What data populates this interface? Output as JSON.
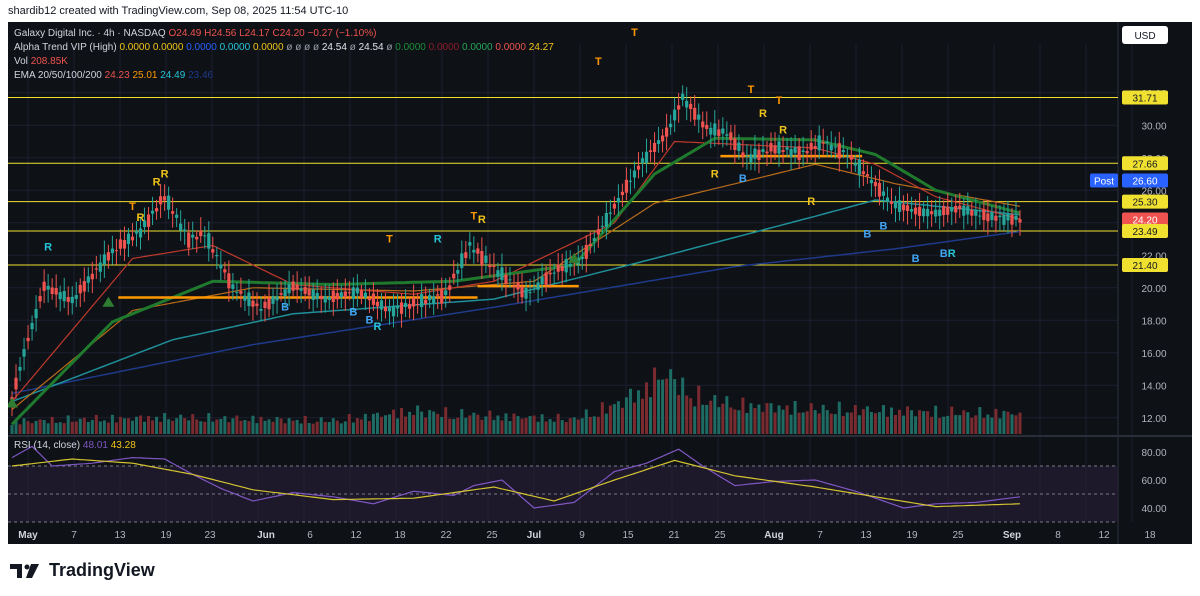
{
  "header": {
    "text": "shardib12 created with TradingView.com, Sep 08, 2025 11:54 UTC-10"
  },
  "brand": {
    "name": "TradingView"
  },
  "currency_button": "USD",
  "legend": {
    "symbol": "Galaxy Digital Inc. · 4h · NASDAQ",
    "ohlc": [
      {
        "k": "O",
        "v": "24.49"
      },
      {
        "k": "H",
        "v": "24.56"
      },
      {
        "k": "L",
        "v": "24.17"
      },
      {
        "k": "C",
        "v": "24.20"
      }
    ],
    "change": "−0.27 (−1.10%)",
    "alpha_label": "Alpha Trend VIP (High)",
    "alpha_values": [
      {
        "v": "0.0000",
        "color": "#f0c419"
      },
      {
        "v": "0.0000",
        "color": "#f0c419"
      },
      {
        "v": "0.0000",
        "color": "#2962ff"
      },
      {
        "v": "0.0000",
        "color": "#26c6da"
      },
      {
        "v": "0.0000",
        "color": "#f0c419"
      },
      {
        "v": "ø",
        "color": "#9aa0aa"
      },
      {
        "v": "ø",
        "color": "#9aa0aa"
      },
      {
        "v": "ø",
        "color": "#9aa0aa"
      },
      {
        "v": "ø",
        "color": "#9aa0aa"
      },
      {
        "v": "24.54",
        "color": "#e0e3eb"
      },
      {
        "v": "ø",
        "color": "#9aa0aa"
      },
      {
        "v": "24.54",
        "color": "#e0e3eb"
      },
      {
        "v": "ø",
        "color": "#9aa0aa"
      },
      {
        "v": "0.0000",
        "color": "#1b8f3a"
      },
      {
        "v": "0.0000",
        "color": "#8b1d2c"
      },
      {
        "v": "0.0000",
        "color": "#26a65b"
      },
      {
        "v": "0.0000",
        "color": "#ef5350"
      },
      {
        "v": "24.27",
        "color": "#f0c419"
      }
    ],
    "vol_label": "Vol",
    "vol_value": "208.85K",
    "ema_label": "EMA 20/50/100/200",
    "ema_values": [
      {
        "v": "24.23",
        "color": "#ef5350"
      },
      {
        "v": "25.01",
        "color": "#ff9800"
      },
      {
        "v": "24.49",
        "color": "#26c6da"
      },
      {
        "v": "23.46",
        "color": "#1e3a8a"
      }
    ],
    "rsi_label": "RSI (14, close)",
    "rsi_values": [
      {
        "v": "48.01",
        "color": "#7e57c2"
      },
      {
        "v": "43.28",
        "color": "#f0c419"
      }
    ]
  },
  "colors": {
    "bg": "#0e1116",
    "grid": "#1c2030",
    "up": "#26a69a",
    "down": "#ef5350",
    "text": "#b2b5be",
    "hline": "#f0e130",
    "support": "#ff9800"
  },
  "chart_data": [
    {
      "type": "candlestick",
      "title": "Galaxy Digital Inc. · 4h · NASDAQ",
      "y_ticks": [
        12,
        14,
        16,
        18,
        20,
        22,
        24,
        26,
        28,
        30,
        32
      ],
      "ylim": [
        11,
        35
      ],
      "x_tick_labels": [
        "May",
        "7",
        "13",
        "19",
        "23",
        "Jun",
        "6",
        "12",
        "18",
        "22",
        "25",
        "Jul",
        "9",
        "15",
        "21",
        "25",
        "Aug",
        "7",
        "13",
        "19",
        "25",
        "Sep",
        "8",
        "12",
        "18"
      ],
      "price_lines": [
        31.71,
        27.66,
        25.3,
        23.49,
        21.4
      ],
      "price_labels": [
        {
          "text": "31.71",
          "value": 31.71,
          "style": "line"
        },
        {
          "text": "27.66",
          "value": 27.66,
          "style": "line"
        },
        {
          "text": "Post",
          "value": 26.6,
          "style": "blue-tag"
        },
        {
          "text": "26.60",
          "value": 26.6,
          "style": "blue"
        },
        {
          "text": "25.30",
          "value": 25.3,
          "style": "line"
        },
        {
          "text": "24.20",
          "value": 24.2,
          "style": "red"
        },
        {
          "text": "23.49",
          "value": 23.49,
          "style": "line"
        },
        {
          "text": "21.40",
          "value": 21.4,
          "style": "line"
        }
      ],
      "support_levels": [
        {
          "from": 0.105,
          "to": 0.23,
          "value": 19.4
        },
        {
          "from": 0.23,
          "to": 0.46,
          "value": 19.4
        },
        {
          "from": 0.46,
          "to": 0.56,
          "value": 20.1
        },
        {
          "from": 0.7,
          "to": 0.84,
          "value": 28.1
        }
      ],
      "key_points": [
        [
          0,
          13.1
        ],
        [
          3,
          16.0
        ],
        [
          8,
          20.1
        ],
        [
          15,
          19.2
        ],
        [
          24,
          22.0
        ],
        [
          32,
          23.5
        ],
        [
          38,
          25.6
        ],
        [
          44,
          23.0
        ],
        [
          48,
          23.3
        ],
        [
          55,
          20.0
        ],
        [
          62,
          18.7
        ],
        [
          70,
          20.1
        ],
        [
          78,
          19.3
        ],
        [
          86,
          19.8
        ],
        [
          94,
          18.6
        ],
        [
          100,
          19.0
        ],
        [
          108,
          19.6
        ],
        [
          114,
          22.6
        ],
        [
          120,
          21.2
        ],
        [
          128,
          19.6
        ],
        [
          135,
          21.0
        ],
        [
          142,
          21.8
        ],
        [
          150,
          25.0
        ],
        [
          157,
          27.8
        ],
        [
          163,
          29.5
        ],
        [
          167,
          31.7
        ],
        [
          173,
          29.8
        ],
        [
          178,
          29.5
        ],
        [
          183,
          28.0
        ],
        [
          190,
          28.6
        ],
        [
          197,
          28.3
        ],
        [
          202,
          29.0
        ],
        [
          208,
          28.2
        ],
        [
          214,
          26.6
        ],
        [
          219,
          25.2
        ],
        [
          225,
          24.7
        ],
        [
          230,
          24.6
        ],
        [
          236,
          24.9
        ],
        [
          242,
          24.4
        ],
        [
          247,
          24.3
        ],
        [
          251,
          24.2
        ]
      ],
      "volume_profile": [
        [
          0,
          0.15
        ],
        [
          20,
          0.18
        ],
        [
          40,
          0.2
        ],
        [
          60,
          0.18
        ],
        [
          80,
          0.16
        ],
        [
          100,
          0.28
        ],
        [
          110,
          0.24
        ],
        [
          140,
          0.18
        ],
        [
          150,
          0.35
        ],
        [
          158,
          0.55
        ],
        [
          162,
          0.75
        ],
        [
          170,
          0.45
        ],
        [
          180,
          0.35
        ],
        [
          200,
          0.3
        ],
        [
          220,
          0.28
        ],
        [
          240,
          0.25
        ],
        [
          251,
          0.25
        ]
      ],
      "ema20": [
        [
          0,
          13.0
        ],
        [
          30,
          21.8
        ],
        [
          50,
          22.6
        ],
        [
          70,
          20.2
        ],
        [
          100,
          19.6
        ],
        [
          120,
          20.4
        ],
        [
          150,
          24.0
        ],
        [
          165,
          29.0
        ],
        [
          200,
          28.6
        ],
        [
          215,
          27.6
        ],
        [
          230,
          25.6
        ],
        [
          251,
          24.23
        ]
      ],
      "ema50": [
        [
          0,
          12.5
        ],
        [
          30,
          18.6
        ],
        [
          60,
          20.0
        ],
        [
          100,
          19.8
        ],
        [
          130,
          20.4
        ],
        [
          160,
          25.2
        ],
        [
          200,
          27.6
        ],
        [
          220,
          26.4
        ],
        [
          251,
          25.01
        ]
      ],
      "ema100": [
        [
          0,
          13.0
        ],
        [
          40,
          16.8
        ],
        [
          70,
          18.4
        ],
        [
          120,
          19.3
        ],
        [
          160,
          21.8
        ],
        [
          200,
          24.4
        ],
        [
          215,
          25.4
        ],
        [
          251,
          24.49
        ]
      ],
      "ema200": [
        [
          0,
          13.5
        ],
        [
          60,
          16.5
        ],
        [
          120,
          18.8
        ],
        [
          180,
          21.3
        ],
        [
          220,
          22.4
        ],
        [
          251,
          23.46
        ]
      ],
      "alpha_trend": [
        [
          0,
          11.6
        ],
        [
          25,
          17.9
        ],
        [
          50,
          20.4
        ],
        [
          80,
          20.2
        ],
        [
          110,
          20.4
        ],
        [
          140,
          21.4
        ],
        [
          160,
          27.0
        ],
        [
          175,
          29.2
        ],
        [
          200,
          29.1
        ],
        [
          215,
          28.2
        ],
        [
          230,
          26.0
        ],
        [
          251,
          24.6
        ]
      ],
      "signals": [
        {
          "t": "R",
          "x": 9,
          "p": 22.3
        },
        {
          "t": "T",
          "x": 30,
          "p": 24.8
        },
        {
          "t": "R",
          "x": 32,
          "p": 24.1
        },
        {
          "t": "R",
          "x": 36,
          "p": 26.3
        },
        {
          "t": "R",
          "x": 38,
          "p": 26.8
        },
        {
          "t": "B",
          "x": 68,
          "p": 18.6
        },
        {
          "t": "B",
          "x": 85,
          "p": 18.3
        },
        {
          "t": "B",
          "x": 89,
          "p": 17.8
        },
        {
          "t": "R",
          "x": 91,
          "p": 17.4
        },
        {
          "t": "T",
          "x": 94,
          "p": 22.8
        },
        {
          "t": "R",
          "x": 106,
          "p": 22.8
        },
        {
          "t": "T",
          "x": 115,
          "p": 24.2
        },
        {
          "t": "R",
          "x": 117,
          "p": 24.0
        },
        {
          "t": "T",
          "x": 146,
          "p": 33.7
        },
        {
          "t": "T",
          "x": 155,
          "p": 35.5
        },
        {
          "t": "R",
          "x": 175,
          "p": 26.8
        },
        {
          "t": "B",
          "x": 182,
          "p": 26.5
        },
        {
          "t": "T",
          "x": 184,
          "p": 32.0
        },
        {
          "t": "R",
          "x": 187,
          "p": 30.5
        },
        {
          "t": "T",
          "x": 191,
          "p": 31.3
        },
        {
          "t": "R",
          "x": 192,
          "p": 29.5
        },
        {
          "t": "R",
          "x": 199,
          "p": 25.1
        },
        {
          "t": "B",
          "x": 213,
          "p": 23.1
        },
        {
          "t": "B",
          "x": 217,
          "p": 23.6
        },
        {
          "t": "B",
          "x": 225,
          "p": 21.6
        },
        {
          "t": "B",
          "x": 232,
          "p": 21.9
        },
        {
          "t": "R",
          "x": 234,
          "p": 21.9
        }
      ],
      "arrows": [
        [
          0,
          13.0
        ],
        [
          24,
          19.2
        ],
        [
          140,
          21.9
        ]
      ]
    },
    {
      "type": "line",
      "title": "RSI (14, close)",
      "y_ticks": [
        40,
        60,
        80
      ],
      "ylim": [
        30,
        90
      ],
      "bands": [
        70,
        50,
        30
      ],
      "rsi": [
        [
          0,
          76
        ],
        [
          5,
          84
        ],
        [
          10,
          70
        ],
        [
          20,
          72
        ],
        [
          30,
          76
        ],
        [
          38,
          75
        ],
        [
          45,
          64
        ],
        [
          52,
          54
        ],
        [
          60,
          45
        ],
        [
          70,
          51
        ],
        [
          80,
          48
        ],
        [
          90,
          43
        ],
        [
          100,
          52
        ],
        [
          110,
          49
        ],
        [
          115,
          56
        ],
        [
          122,
          60
        ],
        [
          130,
          40
        ],
        [
          140,
          44
        ],
        [
          150,
          66
        ],
        [
          158,
          72
        ],
        [
          166,
          82
        ],
        [
          172,
          70
        ],
        [
          180,
          56
        ],
        [
          190,
          59
        ],
        [
          200,
          60
        ],
        [
          210,
          52
        ],
        [
          216,
          46
        ],
        [
          222,
          40
        ],
        [
          230,
          43
        ],
        [
          240,
          44
        ],
        [
          251,
          48
        ]
      ],
      "rsi_ma": [
        [
          0,
          70
        ],
        [
          15,
          75
        ],
        [
          30,
          72
        ],
        [
          45,
          64
        ],
        [
          60,
          53
        ],
        [
          80,
          46
        ],
        [
          100,
          47
        ],
        [
          120,
          55
        ],
        [
          135,
          45
        ],
        [
          150,
          60
        ],
        [
          165,
          74
        ],
        [
          180,
          63
        ],
        [
          200,
          55
        ],
        [
          215,
          48
        ],
        [
          230,
          41
        ],
        [
          251,
          43
        ]
      ]
    }
  ]
}
